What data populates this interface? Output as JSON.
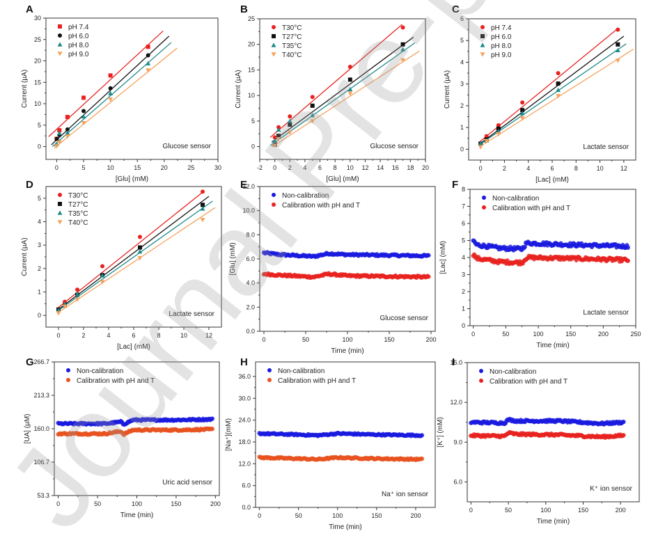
{
  "figure": {
    "watermark": "Journal Pre-proof"
  },
  "chart_data": [
    {
      "panel": "A",
      "type": "scatter",
      "subtype": "linear-calibration",
      "title": "",
      "annotation": "Glucose sensor",
      "xlabel": "[Glu] (mM)",
      "ylabel": "Current (µA)",
      "xlim": [
        -2,
        30
      ],
      "ylim": [
        -3,
        30
      ],
      "xticks": [
        0,
        5,
        10,
        15,
        20,
        25,
        30
      ],
      "yticks": [
        0,
        5,
        10,
        15,
        20,
        25,
        30
      ],
      "ytick_labels": [
        "0",
        "5",
        "10",
        "15",
        "20",
        "25",
        "30"
      ],
      "legend_position": "top-left",
      "x": [
        0,
        0.5,
        2,
        5,
        10,
        17
      ],
      "series": [
        {
          "name": "pH 7.4",
          "marker": "square",
          "color": "#e8221f",
          "values": [
            1.8,
            3.8,
            6.9,
            11.4,
            16.6,
            23.3
          ],
          "fit": [
            [
              -1.5,
              2.3
            ],
            [
              19.8,
              27.0
            ]
          ]
        },
        {
          "name": "pH 6.0",
          "marker": "circle",
          "color": "#111111",
          "values": [
            1.8,
            2.7,
            4.0,
            8.3,
            13.6,
            21.3
          ],
          "fit": [
            [
              -1.0,
              0.4
            ],
            [
              20.9,
              25.8
            ]
          ]
        },
        {
          "name": "pH 8.0",
          "marker": "triangle-up",
          "color": "#1f8a8a",
          "values": [
            0.5,
            3.1,
            3.2,
            7.0,
            12.4,
            19.4
          ],
          "fit": [
            [
              -0.8,
              0.0
            ],
            [
              21.3,
              24.3
            ]
          ]
        },
        {
          "name": "pH 9.0",
          "marker": "triangle-down",
          "color": "#f5a25d",
          "values": [
            0.1,
            1.0,
            2.4,
            5.5,
            11.0,
            17.8
          ],
          "fit": [
            [
              -0.5,
              -0.4
            ],
            [
              22.4,
              23.0
            ]
          ]
        }
      ]
    },
    {
      "panel": "B",
      "type": "scatter",
      "subtype": "linear-calibration",
      "annotation": "Glucose sensor",
      "xlabel": "[Glu] (mM)",
      "ylabel": "Current (µA)",
      "xlim": [
        -2,
        20
      ],
      "ylim": [
        -2.5,
        25
      ],
      "xticks": [
        -2,
        0,
        2,
        4,
        6,
        8,
        10,
        12,
        14,
        16,
        18,
        20
      ],
      "yticks": [
        0,
        5,
        10,
        15,
        20,
        25
      ],
      "ytick_labels": [
        "0",
        "5",
        "10",
        "15",
        "20",
        "25"
      ],
      "legend_position": "top-left",
      "x": [
        0,
        0.5,
        2,
        5,
        10,
        17
      ],
      "series": [
        {
          "name": "T30°C",
          "marker": "circle",
          "color": "#e8221f",
          "values": [
            1.8,
            3.8,
            5.9,
            9.7,
            15.6,
            23.3
          ],
          "fit": [
            [
              -0.6,
              1.8
            ],
            [
              16.9,
              23.9
            ]
          ]
        },
        {
          "name": "T27°C",
          "marker": "square",
          "color": "#111111",
          "values": [
            0.4,
            2.1,
            4.3,
            8.0,
            13.1,
            20.0
          ],
          "fit": [
            [
              -0.4,
              0.9
            ],
            [
              18.4,
              21.4
            ]
          ]
        },
        {
          "name": "T35°C",
          "marker": "triangle-up",
          "color": "#1f8a8a",
          "values": [
            1.1,
            3.3,
            5.0,
            6.1,
            11.2,
            19.0
          ],
          "fit": [
            [
              -0.6,
              0.2
            ],
            [
              18.6,
              20.3
            ]
          ]
        },
        {
          "name": "T40°C",
          "marker": "triangle-down",
          "color": "#f5a25d",
          "values": [
            0.2,
            1.5,
            2.8,
            5.0,
            10.4,
            16.9
          ],
          "fit": [
            [
              -0.4,
              -0.1
            ],
            [
              19.2,
              18.7
            ]
          ]
        }
      ]
    },
    {
      "panel": "C",
      "type": "scatter",
      "subtype": "linear-calibration",
      "annotation": "Lactate sensor",
      "xlabel": "[Lac] (mM)",
      "ylabel": "Current (µA)",
      "xlim": [
        -1,
        13
      ],
      "ylim": [
        -0.5,
        6
      ],
      "xticks": [
        0,
        2,
        4,
        6,
        8,
        10,
        12
      ],
      "yticks": [
        0,
        1,
        2,
        3,
        4,
        5,
        6
      ],
      "ytick_labels": [
        "0",
        "1",
        "2",
        "3",
        "4",
        "5",
        "6"
      ],
      "legend_position": "top-left",
      "x": [
        0,
        0.5,
        1.5,
        3.5,
        6.5,
        11.5
      ],
      "series": [
        {
          "name": "pH 7.4",
          "marker": "circle",
          "color": "#e8221f",
          "values": [
            0.2,
            0.6,
            1.1,
            2.15,
            3.5,
            5.5
          ],
          "fit": [
            [
              -0.1,
              0.33
            ],
            [
              11.5,
              5.55
            ]
          ]
        },
        {
          "name": "pH 6.0",
          "marker": "square",
          "color": "#111111",
          "values": [
            0.25,
            0.45,
            0.95,
            1.8,
            3.02,
            4.82
          ],
          "fit": [
            [
              -0.1,
              0.23
            ],
            [
              12.0,
              5.2
            ]
          ]
        },
        {
          "name": "pH 8.0",
          "marker": "triangle-up",
          "color": "#1f8a8a",
          "values": [
            0.25,
            0.4,
            0.82,
            1.65,
            2.72,
            4.55
          ],
          "fit": [
            [
              -0.1,
              0.2
            ],
            [
              12.2,
              4.85
            ]
          ]
        },
        {
          "name": "pH 9.0",
          "marker": "triangle-down",
          "color": "#f5a25d",
          "values": [
            0.1,
            0.38,
            0.7,
            1.43,
            2.45,
            4.08
          ],
          "fit": [
            [
              -0.1,
              0.1
            ],
            [
              12.8,
              4.6
            ]
          ]
        }
      ]
    },
    {
      "panel": "D",
      "type": "scatter",
      "subtype": "linear-calibration",
      "annotation": "Lactate sensor",
      "xlabel": "[Lac] (mM)",
      "ylabel": "Current (µA)",
      "xlim": [
        -1,
        13
      ],
      "ylim": [
        -0.5,
        5.5
      ],
      "xticks": [
        0,
        2,
        4,
        6,
        8,
        10,
        12
      ],
      "yticks": [
        0,
        1,
        2,
        3,
        4,
        5
      ],
      "ytick_labels": [
        "0",
        "1",
        "2",
        "3",
        "4",
        "5"
      ],
      "legend_position": "top-left",
      "x": [
        0,
        0.5,
        1.5,
        3.5,
        6.5,
        11.5
      ],
      "series": [
        {
          "name": "T30°C",
          "marker": "circle",
          "color": "#e8221f",
          "values": [
            0.2,
            0.58,
            1.1,
            2.1,
            3.35,
            5.28
          ],
          "fit": [
            [
              -0.1,
              0.3
            ],
            [
              11.6,
              5.3
            ]
          ]
        },
        {
          "name": "T27°C",
          "marker": "square",
          "color": "#111111",
          "values": [
            0.25,
            0.42,
            0.88,
            1.72,
            2.9,
            4.72
          ],
          "fit": [
            [
              -0.1,
              0.22
            ],
            [
              12.0,
              5.08
            ]
          ]
        },
        {
          "name": "T35°C",
          "marker": "triangle-up",
          "color": "#1f8a8a",
          "values": [
            0.22,
            0.48,
            0.9,
            1.7,
            2.72,
            4.55
          ],
          "fit": [
            [
              -0.1,
              0.18
            ],
            [
              12.3,
              4.88
            ]
          ]
        },
        {
          "name": "T40°C",
          "marker": "triangle-down",
          "color": "#f5a25d",
          "values": [
            0.1,
            0.38,
            0.68,
            1.43,
            2.45,
            4.08
          ],
          "fit": [
            [
              -0.1,
              0.1
            ],
            [
              12.5,
              4.6
            ]
          ]
        }
      ]
    },
    {
      "panel": "E",
      "type": "scatter",
      "subtype": "time-series",
      "annotation": "Glucose sensor",
      "xlabel": "Time (min)",
      "ylabel": "[Glu] (mM)",
      "xlim": [
        -5,
        205
      ],
      "ylim": [
        0,
        12
      ],
      "xticks": [
        0,
        50,
        100,
        150,
        200
      ],
      "yticks": [
        0,
        2,
        4,
        6,
        8,
        10,
        12
      ],
      "ytick_labels": [
        "0.0",
        "2.0",
        "4.0",
        "6.0",
        "8.0",
        "10.0",
        "12.0"
      ],
      "legend_position": "top-left",
      "x_range": [
        0,
        197
      ],
      "series": [
        {
          "name": "Non-calibration",
          "marker": "circle",
          "color": "#1a1adf",
          "profile": [
            [
              0,
              6.5
            ],
            [
              20,
              6.35
            ],
            [
              60,
              6.2
            ],
            [
              77,
              6.45
            ],
            [
              100,
              6.35
            ],
            [
              150,
              6.3
            ],
            [
              197,
              6.25
            ]
          ],
          "noise": 0.08
        },
        {
          "name": "Calibration with pH and T",
          "marker": "circle",
          "color": "#e8221f",
          "profile": [
            [
              0,
              4.75
            ],
            [
              20,
              4.65
            ],
            [
              60,
              4.5
            ],
            [
              77,
              4.75
            ],
            [
              100,
              4.6
            ],
            [
              150,
              4.55
            ],
            [
              197,
              4.5
            ]
          ],
          "noise": 0.08
        }
      ]
    },
    {
      "panel": "F",
      "type": "scatter",
      "subtype": "time-series",
      "annotation": "Lactate sensor",
      "xlabel": "Time (min)",
      "ylabel": "[Lac] (mM)",
      "xlim": [
        -5,
        250
      ],
      "ylim": [
        0,
        8
      ],
      "xticks": [
        0,
        50,
        100,
        150,
        200,
        250
      ],
      "yticks": [
        0,
        1,
        2,
        3,
        4,
        5,
        6,
        7,
        8
      ],
      "ytick_labels": [
        "0",
        "1",
        "2",
        "3",
        "4",
        "5",
        "6",
        "7",
        "8"
      ],
      "legend_position": "top-left",
      "x_range": [
        0,
        238
      ],
      "series": [
        {
          "name": "Non-calibration",
          "marker": "circle",
          "color": "#1a1adf",
          "profile": [
            [
              0,
              5.0
            ],
            [
              5,
              4.75
            ],
            [
              40,
              4.55
            ],
            [
              75,
              4.5
            ],
            [
              82,
              4.85
            ],
            [
              150,
              4.75
            ],
            [
              238,
              4.65
            ]
          ],
          "noise": 0.1
        },
        {
          "name": "Calibration with pH and T",
          "marker": "circle",
          "color": "#e8221f",
          "profile": [
            [
              0,
              4.2
            ],
            [
              5,
              3.95
            ],
            [
              40,
              3.75
            ],
            [
              75,
              3.7
            ],
            [
              82,
              4.0
            ],
            [
              150,
              3.95
            ],
            [
              238,
              3.85
            ]
          ],
          "noise": 0.1
        }
      ]
    },
    {
      "panel": "G",
      "type": "scatter",
      "subtype": "time-series",
      "annotation": "Uric acid sensor",
      "xlabel": "Time (min)",
      "ylabel": "[UA] (µM)",
      "xlim": [
        -5,
        205
      ],
      "ylim": [
        53.3,
        266.7
      ],
      "xticks": [
        0,
        50,
        100,
        150,
        200
      ],
      "yticks": [
        53.3,
        106.7,
        160.0,
        213.3,
        266.7
      ],
      "ytick_labels": [
        "53.3",
        "106.7",
        "160.0",
        "213.3",
        "266.7"
      ],
      "legend_position": "top-left",
      "x_range": [
        0,
        196
      ],
      "series": [
        {
          "name": "Non-calibration",
          "marker": "circle",
          "color": "#1a1adf",
          "profile": [
            [
              0,
              168
            ],
            [
              60,
              168
            ],
            [
              80,
              171
            ],
            [
              83,
              167
            ],
            [
              95,
              174
            ],
            [
              150,
              174
            ],
            [
              196,
              175
            ]
          ],
          "noise": 1.3
        },
        {
          "name": "Calibration with pH and T",
          "marker": "circle",
          "color": "#e8521f",
          "profile": [
            [
              0,
              152
            ],
            [
              60,
              152
            ],
            [
              80,
              156
            ],
            [
              83,
              151
            ],
            [
              95,
              158
            ],
            [
              150,
              158
            ],
            [
              196,
              159
            ]
          ],
          "noise": 1.3
        }
      ]
    },
    {
      "panel": "H",
      "type": "scatter",
      "subtype": "time-series",
      "annotation": "Na⁺ ion sensor",
      "xlabel": "Time (min)",
      "ylabel": "[Na⁺](mM)",
      "xlim": [
        -5,
        225
      ],
      "ylim": [
        0,
        40
      ],
      "xticks": [
        0,
        50,
        100,
        150,
        200
      ],
      "yticks": [
        0,
        6,
        12,
        18,
        24,
        30,
        36
      ],
      "ytick_labels": [
        "0.0",
        "6.0",
        "12.0",
        "18.0",
        "24.0",
        "30.0",
        "36.0"
      ],
      "legend_position": "top-left",
      "x_range": [
        0,
        208
      ],
      "series": [
        {
          "name": "Non-calibration",
          "marker": "circle",
          "color": "#1a1adf",
          "profile": [
            [
              0,
              20.3
            ],
            [
              50,
              20.0
            ],
            [
              75,
              19.8
            ],
            [
              100,
              20.3
            ],
            [
              150,
              20.0
            ],
            [
              208,
              19.8
            ]
          ],
          "noise": 0.2
        },
        {
          "name": "Calibration with pH and T",
          "marker": "circle",
          "color": "#e8521f",
          "profile": [
            [
              0,
              13.7
            ],
            [
              50,
              13.4
            ],
            [
              75,
              13.2
            ],
            [
              100,
              13.7
            ],
            [
              150,
              13.4
            ],
            [
              208,
              13.2
            ]
          ],
          "noise": 0.2
        }
      ]
    },
    {
      "panel": "I",
      "type": "scatter",
      "subtype": "time-series",
      "annotation": "K⁺ ion sensor",
      "xlabel": "Time (min)",
      "ylabel": "[K⁺] (mM)",
      "xlim": [
        -5,
        225
      ],
      "ylim": [
        4.5,
        15
      ],
      "xticks": [
        0,
        50,
        100,
        150,
        200
      ],
      "yticks": [
        6,
        9,
        12,
        15
      ],
      "ytick_labels": [
        "6.0",
        "9.0",
        "12.0",
        "15.0"
      ],
      "legend_position": "top-left",
      "x_range": [
        0,
        204
      ],
      "series": [
        {
          "name": "Non-calibration",
          "marker": "circle",
          "color": "#1a1adf",
          "profile": [
            [
              0,
              10.5
            ],
            [
              45,
              10.45
            ],
            [
              50,
              10.7
            ],
            [
              60,
              10.6
            ],
            [
              118,
              10.6
            ],
            [
              175,
              10.4
            ],
            [
              204,
              10.5
            ]
          ],
          "noise": 0.08
        },
        {
          "name": "Calibration with pH and T",
          "marker": "circle",
          "color": "#e8221f",
          "profile": [
            [
              0,
              9.5
            ],
            [
              45,
              9.45
            ],
            [
              50,
              9.7
            ],
            [
              60,
              9.6
            ],
            [
              118,
              9.55
            ],
            [
              175,
              9.4
            ],
            [
              204,
              9.5
            ]
          ],
          "noise": 0.08
        }
      ]
    }
  ]
}
